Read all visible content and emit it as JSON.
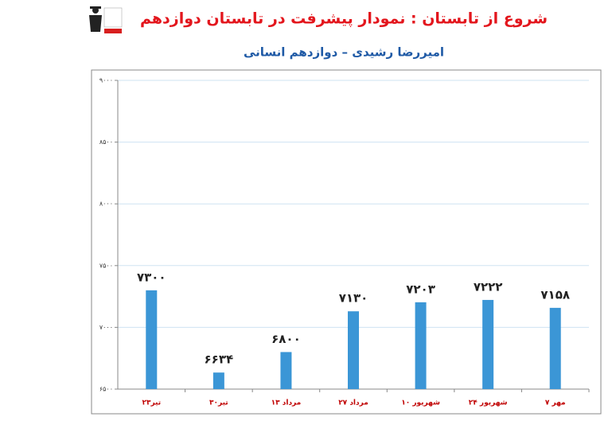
{
  "chart_data": {
    "type": "bar",
    "title": "شروع از تابستان : نمودار پیشرفت در تابستان دوازدهم",
    "subtitle": "امیررضا رشیدی – دوازدهم انسانی",
    "categories": [
      "۲۳تیر",
      "۳۰تیر",
      "۱۳ مرداد",
      "۲۷ مرداد",
      "۱۰ شهریور",
      "۲۴ شهریور",
      "۷ مهر"
    ],
    "values": [
      7300,
      6634,
      6800,
      7130,
      7203,
      7222,
      7158
    ],
    "value_labels": [
      "۷۳۰۰",
      "۶۶۳۴",
      "۶۸۰۰",
      "۷۱۳۰",
      "۷۲۰۳",
      "۷۲۲۲",
      "۷۱۵۸"
    ],
    "color": "#3b96d6",
    "ylim": [
      6500,
      9000
    ],
    "yticks": [
      {
        "value": 6500,
        "label": "۶۵۰۰"
      },
      {
        "value": 7000,
        "label": "۷۰۰۰"
      },
      {
        "value": 7500,
        "label": "۷۵۰۰"
      },
      {
        "value": 8000,
        "label": "۸۰۰۰"
      },
      {
        "value": 8500,
        "label": "۸۵۰۰"
      },
      {
        "value": 9000,
        "label": "۹۰۰۰"
      }
    ],
    "grid": true
  }
}
